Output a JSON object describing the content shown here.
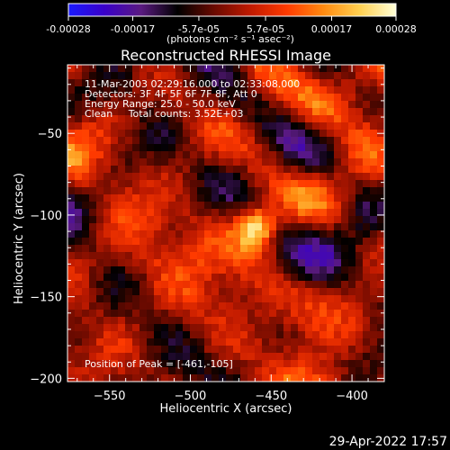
{
  "colorbar": {
    "ticks": [
      "-0.00028",
      "-0.00017",
      "-5.7e-05",
      "5.7e-05",
      "0.00017",
      "0.00028"
    ],
    "tick_values": [
      -0.00028,
      -0.00017,
      -5.7e-05,
      5.7e-05,
      0.00017,
      0.00028
    ],
    "range": [
      -0.00028,
      0.00028
    ],
    "unit_label": "(photons cm⁻² s⁻¹ asec⁻²)",
    "stops": [
      "#1a1aff",
      "#3a00c8",
      "#5a1a80",
      "#000000",
      "#6a0a00",
      "#c01a00",
      "#ff3a00",
      "#ff8a10",
      "#ffd050",
      "#ffffd8"
    ]
  },
  "chart_data": {
    "type": "heatmap",
    "title": "Reconstructed RHESSI Image",
    "xlabel": "Heliocentric X (arcsec)",
    "ylabel": "Heliocentric Y (arcsec)",
    "xlim": [
      -576,
      -380
    ],
    "ylim": [
      -202,
      -8
    ],
    "x_ticks": [
      -550,
      -500,
      -450,
      -400
    ],
    "y_ticks": [
      -50,
      -100,
      -150,
      -200
    ],
    "x_tick_labels": [
      "−550",
      "−500",
      "−450",
      "−400"
    ],
    "y_tick_labels": [
      "−50",
      "−100",
      "−150",
      "−200"
    ],
    "annotations": [
      "11-Mar-2003 02:29:16.000 to 02:33:08.000",
      "Detectors: 3F 4F 5F 6F 7F 8F, Att 0",
      "Energy Range: 25.0 - 50.0 keV",
      "Clean     Total counts: 3.52E+03"
    ],
    "peak_label": "Position of Peak = [-461,-105]",
    "peak": [
      -461,
      -105
    ],
    "grid": false
  },
  "footer": {
    "timestamp": "29-Apr-2022 17:57"
  }
}
